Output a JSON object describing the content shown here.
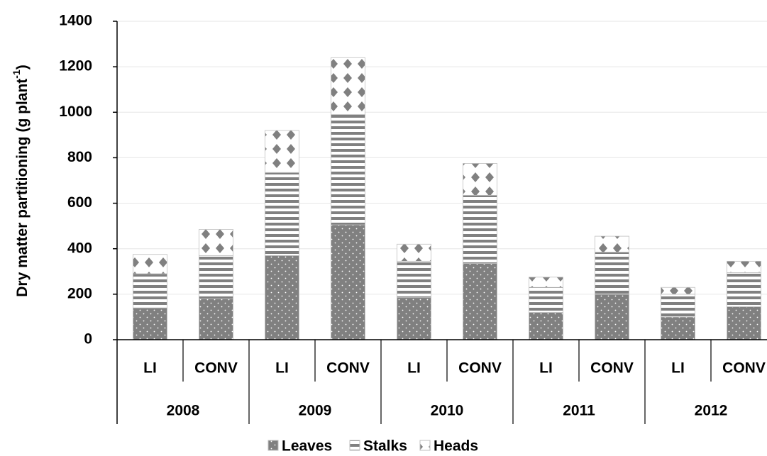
{
  "chart_data": {
    "type": "stacked_bar",
    "y_label": [
      "Dry matter partitioning (g plant",
      "-1",
      ")"
    ],
    "categories": [
      "LI",
      "CONV",
      "LI",
      "CONV",
      "LI",
      "CONV",
      "LI",
      "CONV",
      "LI",
      "CONV"
    ],
    "groups": [
      "2008",
      "2009",
      "2010",
      "2011",
      "2012"
    ],
    "series": [
      {
        "name": "Leaves",
        "color": "#808080",
        "pattern": "dots",
        "values": [
          140,
          180,
          370,
          505,
          185,
          335,
          120,
          200,
          100,
          145
        ]
      },
      {
        "name": "Stalks",
        "color": "#808080",
        "pattern": "stripes",
        "values": [
          150,
          190,
          365,
          485,
          160,
          300,
          110,
          185,
          100,
          150
        ]
      },
      {
        "name": "Heads",
        "color": "#808080",
        "pattern": "diamonds",
        "values": [
          85,
          115,
          185,
          250,
          75,
          140,
          45,
          70,
          30,
          50
        ]
      }
    ],
    "ylim": [
      0,
      1400
    ],
    "yticks": [
      0,
      200,
      400,
      600,
      800,
      1000,
      1200,
      1400
    ],
    "grid": true,
    "legend": "bottom"
  }
}
